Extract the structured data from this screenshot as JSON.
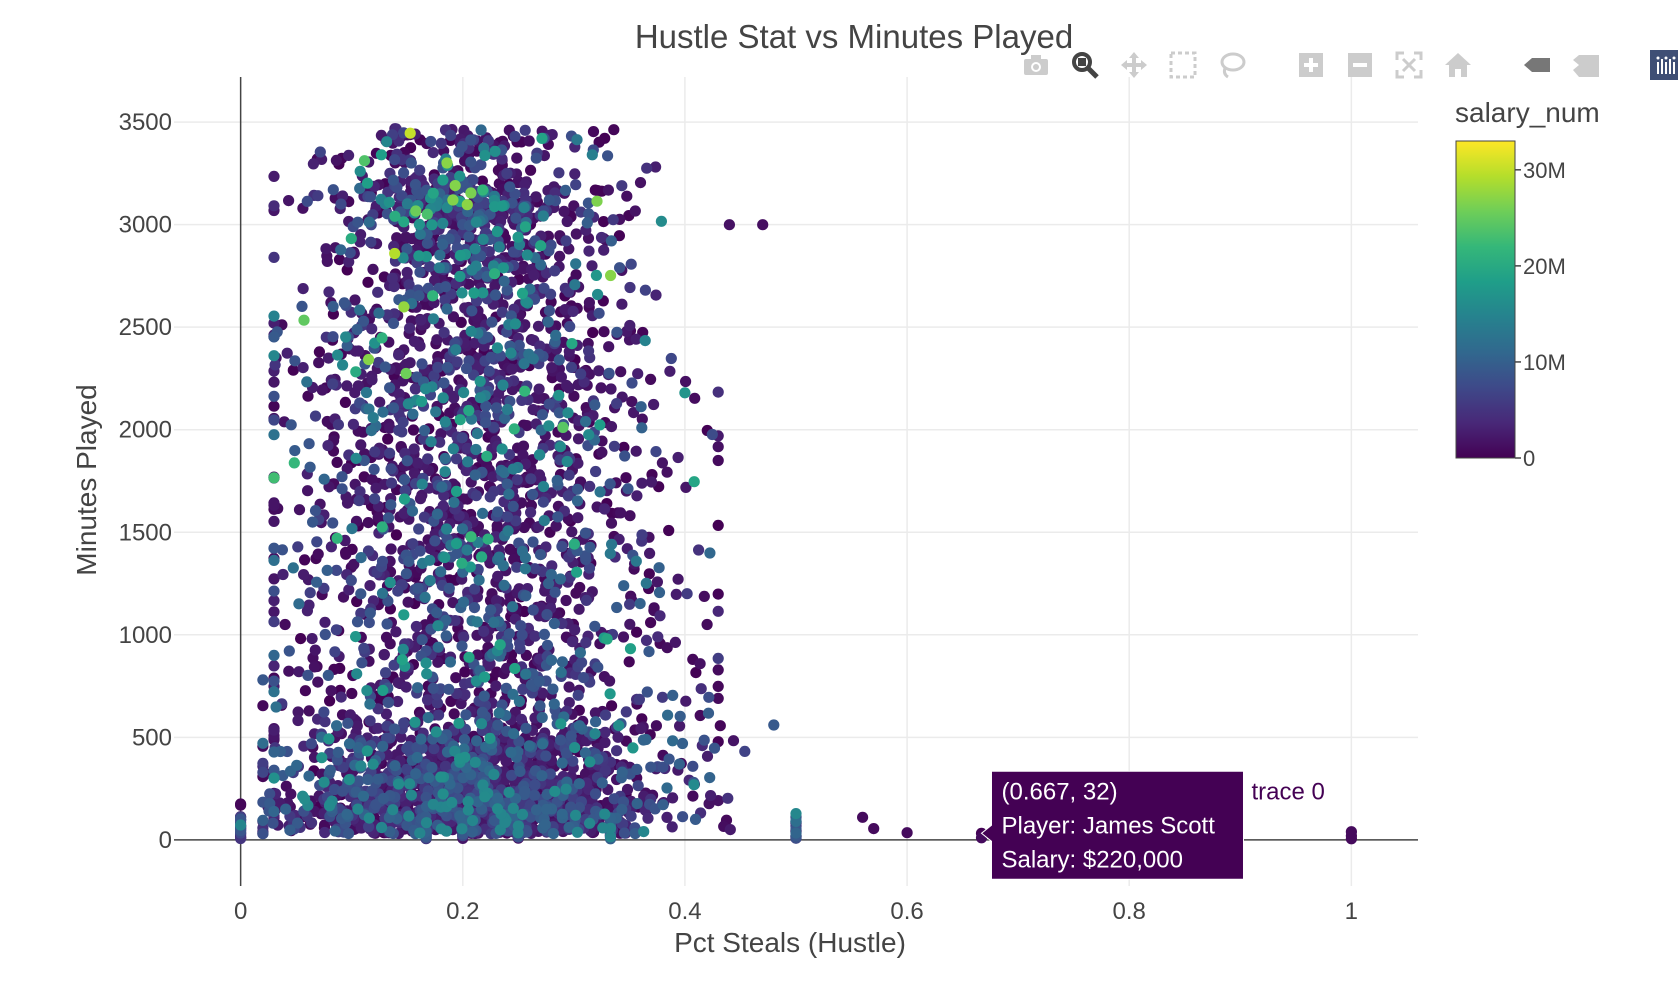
{
  "chart_data": {
    "type": "scatter",
    "title": "Hustle Stat vs Minutes Played",
    "xlabel": "Pct Steals (Hustle)",
    "ylabel": "Minutes Played",
    "xlim": [
      -0.06,
      1.06
    ],
    "ylim": [
      -225,
      3720
    ],
    "x_ticks": [
      0,
      0.2,
      0.4,
      0.6,
      0.8,
      1
    ],
    "x_tick_labels": [
      "0",
      "0.2",
      "0.4",
      "0.6",
      "0.8",
      "1"
    ],
    "y_ticks": [
      0,
      500,
      1000,
      1500,
      2000,
      2500,
      3000,
      3500
    ],
    "y_tick_labels": [
      "0",
      "500",
      "1000",
      "1500",
      "2000",
      "2500",
      "3000",
      "3500"
    ],
    "grid": true,
    "colorbar": {
      "title": "salary_num",
      "range": [
        0,
        33000000
      ],
      "ticks": [
        0,
        10000000,
        20000000,
        30000000
      ],
      "tick_labels": [
        "0",
        "10M",
        "20M",
        "30M"
      ],
      "colors": [
        "#440154",
        "#482878",
        "#3e4989",
        "#31688e",
        "#26828e",
        "#1f9e89",
        "#35b779",
        "#6ece58",
        "#b5de2b",
        "#fde725"
      ]
    },
    "point_count": 4200,
    "notable_points": [
      {
        "x": 0.44,
        "y": 3000,
        "salary": 1500000
      },
      {
        "x": 0.47,
        "y": 3000,
        "salary": 1200000
      },
      {
        "x": 0.42,
        "y": 1050,
        "salary": 900000
      },
      {
        "x": 0.43,
        "y": 690,
        "salary": 800000
      },
      {
        "x": 0.5,
        "y": 90,
        "salary": 12000000
      },
      {
        "x": 0.5,
        "y": 40,
        "salary": 1000000
      },
      {
        "x": 0.5,
        "y": 15,
        "salary": 900000
      },
      {
        "x": 0.56,
        "y": 110,
        "salary": 900000
      },
      {
        "x": 0.57,
        "y": 55,
        "salary": 900000
      },
      {
        "x": 0.6,
        "y": 35,
        "salary": 900000
      },
      {
        "x": 0.667,
        "y": 32,
        "salary": 220000
      },
      {
        "x": 0.667,
        "y": 10,
        "salary": 900000
      },
      {
        "x": 1.0,
        "y": 40,
        "salary": 800000
      },
      {
        "x": 1.0,
        "y": 20,
        "salary": 800000
      },
      {
        "x": 1.0,
        "y": 5,
        "salary": 800000
      },
      {
        "x": 0.02,
        "y": 780,
        "salary": 9000000
      },
      {
        "x": 0.04,
        "y": 1050,
        "salary": 900000
      },
      {
        "x": 0.43,
        "y": 1850,
        "salary": 900000
      },
      {
        "x": 0.4,
        "y": 2180,
        "salary": 17000000
      }
    ],
    "hover": {
      "coord_text": "(0.667, 32)",
      "player_text": "Player: James Scott",
      "salary_text": "Salary: $220,000",
      "trace_label": "trace 0",
      "x": 0.667,
      "y": 32,
      "bg_color": "#440154"
    }
  },
  "modebar": {
    "icons": [
      "camera-icon",
      "zoom-icon",
      "pan-icon",
      "box-select-icon",
      "lasso-icon",
      "zoom-in-icon",
      "zoom-out-icon",
      "autoscale-icon",
      "reset-axes-icon",
      "hover-closest-icon",
      "hover-compare-icon",
      "plotly-logo-icon"
    ],
    "icon_color": "#cccccc",
    "active_color": "#444444",
    "logo_color": "#3f4f75"
  }
}
